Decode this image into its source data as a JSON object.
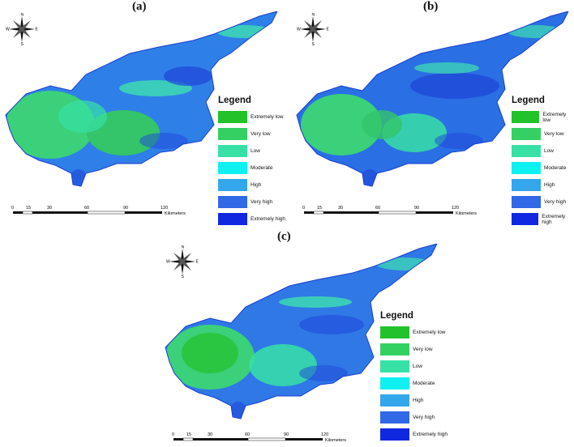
{
  "panels": [
    {
      "id": "a",
      "label": "(a)"
    },
    {
      "id": "b",
      "label": "(b)"
    },
    {
      "id": "c",
      "label": "(c)"
    }
  ],
  "compass": {
    "n": "N",
    "s": "S",
    "e": "E",
    "w": "W"
  },
  "legend": {
    "title": "Legend",
    "classes": [
      {
        "label": "Extremely low",
        "color": "#22c22a"
      },
      {
        "label": "Very low",
        "color": "#35d062"
      },
      {
        "label": "Low",
        "color": "#37e1a6"
      },
      {
        "label": "Moderate",
        "color": "#0ff0f0"
      },
      {
        "label": "High",
        "color": "#34a6eb"
      },
      {
        "label": "Very high",
        "color": "#3168e6"
      },
      {
        "label": "Extremely high",
        "color": "#1128e1"
      }
    ]
  },
  "scale": {
    "ticks": [
      "0",
      "15",
      "30",
      "60",
      "90",
      "120"
    ],
    "unit": "Kilometers"
  },
  "map_colors": {
    "body": "#2f7fe8",
    "west": "#3bd07a",
    "central": "#34c46a",
    "coast": "#1f45d8",
    "north": "#3ee0b0"
  }
}
